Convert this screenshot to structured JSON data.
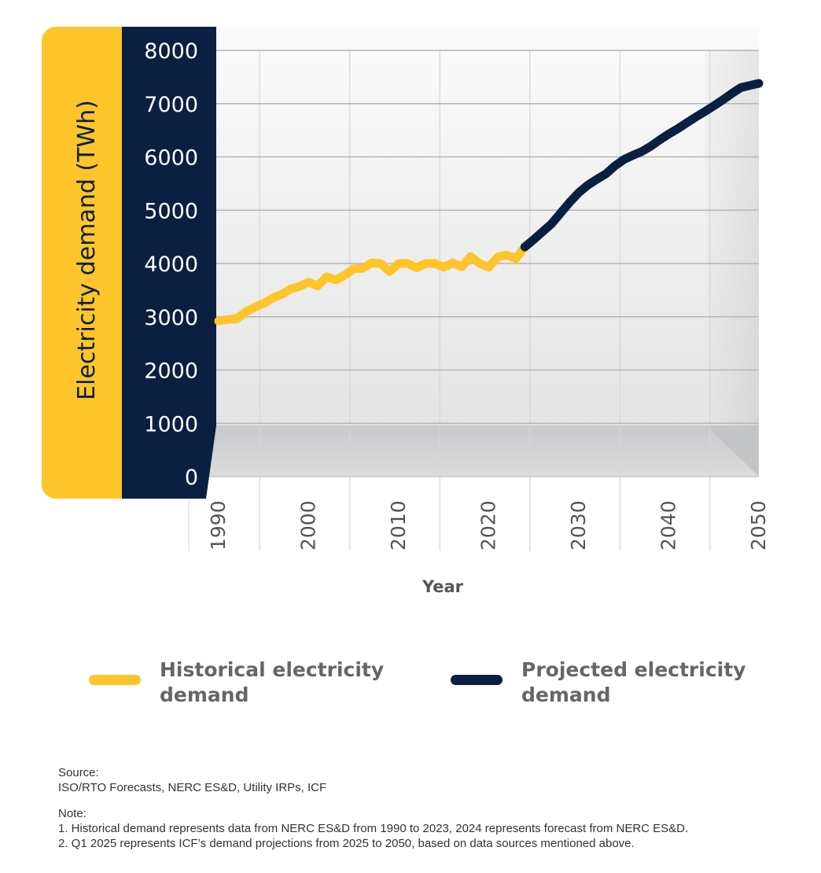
{
  "chart_data": {
    "type": "line",
    "ylabel": "Electricity demand (TWh)",
    "xlabel": "Year",
    "ylim": [
      0,
      8000
    ],
    "xlim": [
      1990,
      2050
    ],
    "yticks": [
      "0",
      "1000",
      "2000",
      "3000",
      "4000",
      "5000",
      "6000",
      "7000",
      "8000"
    ],
    "xticks": [
      "1990",
      "2000",
      "2010",
      "2020",
      "2030",
      "2040",
      "2050"
    ],
    "grid": true,
    "legend_placement": "bottom",
    "series": [
      {
        "name": "Historical electricity demand",
        "color": "#FDC52A",
        "x": [
          1990,
          1991,
          1992,
          1993,
          1994,
          1995,
          1996,
          1997,
          1998,
          1999,
          2000,
          2001,
          2002,
          2003,
          2004,
          2005,
          2006,
          2007,
          2008,
          2009,
          2010,
          2011,
          2012,
          2013,
          2014,
          2015,
          2016,
          2017,
          2018,
          2019,
          2020,
          2021,
          2022,
          2023,
          2024
        ],
        "values": [
          2920,
          2950,
          2960,
          3090,
          3180,
          3250,
          3350,
          3420,
          3520,
          3570,
          3650,
          3580,
          3750,
          3690,
          3780,
          3900,
          3910,
          4010,
          4000,
          3850,
          4000,
          4000,
          3920,
          4000,
          4000,
          3930,
          4010,
          3940,
          4130,
          4000,
          3930,
          4120,
          4160,
          4090,
          4310
        ]
      },
      {
        "name": "Projected electricity demand",
        "color": "#0B1F40",
        "x": [
          2024,
          2025,
          2026,
          2027,
          2028,
          2029,
          2030,
          2031,
          2032,
          2033,
          2034,
          2035,
          2036,
          2037,
          2038,
          2039,
          2040,
          2041,
          2042,
          2043,
          2044,
          2045,
          2046,
          2047,
          2048,
          2049,
          2050
        ],
        "values": [
          4310,
          4450,
          4600,
          4750,
          4950,
          5150,
          5330,
          5470,
          5580,
          5680,
          5830,
          5950,
          6030,
          6100,
          6200,
          6320,
          6430,
          6530,
          6640,
          6750,
          6850,
          6960,
          7070,
          7190,
          7300,
          7340,
          7380
        ]
      }
    ]
  },
  "legend": {
    "historical": [
      "Historical electricity",
      "demand"
    ],
    "projected": [
      "Projected electricity",
      "demand"
    ]
  },
  "notes": {
    "source_title": "Source:",
    "source_text": "ISO/RTO Forecasts, NERC ES&D, Utility IRPs, ICF",
    "note_title": "Note:",
    "note_1": "1. Historical demand represents data from NERC ES&D from 1990 to 2023, 2024 represents forecast from NERC ES&D.",
    "note_2": "2. Q1 2025 represents ICF’s demand projections from 2025 to 2050, based on data sources mentioned above."
  }
}
